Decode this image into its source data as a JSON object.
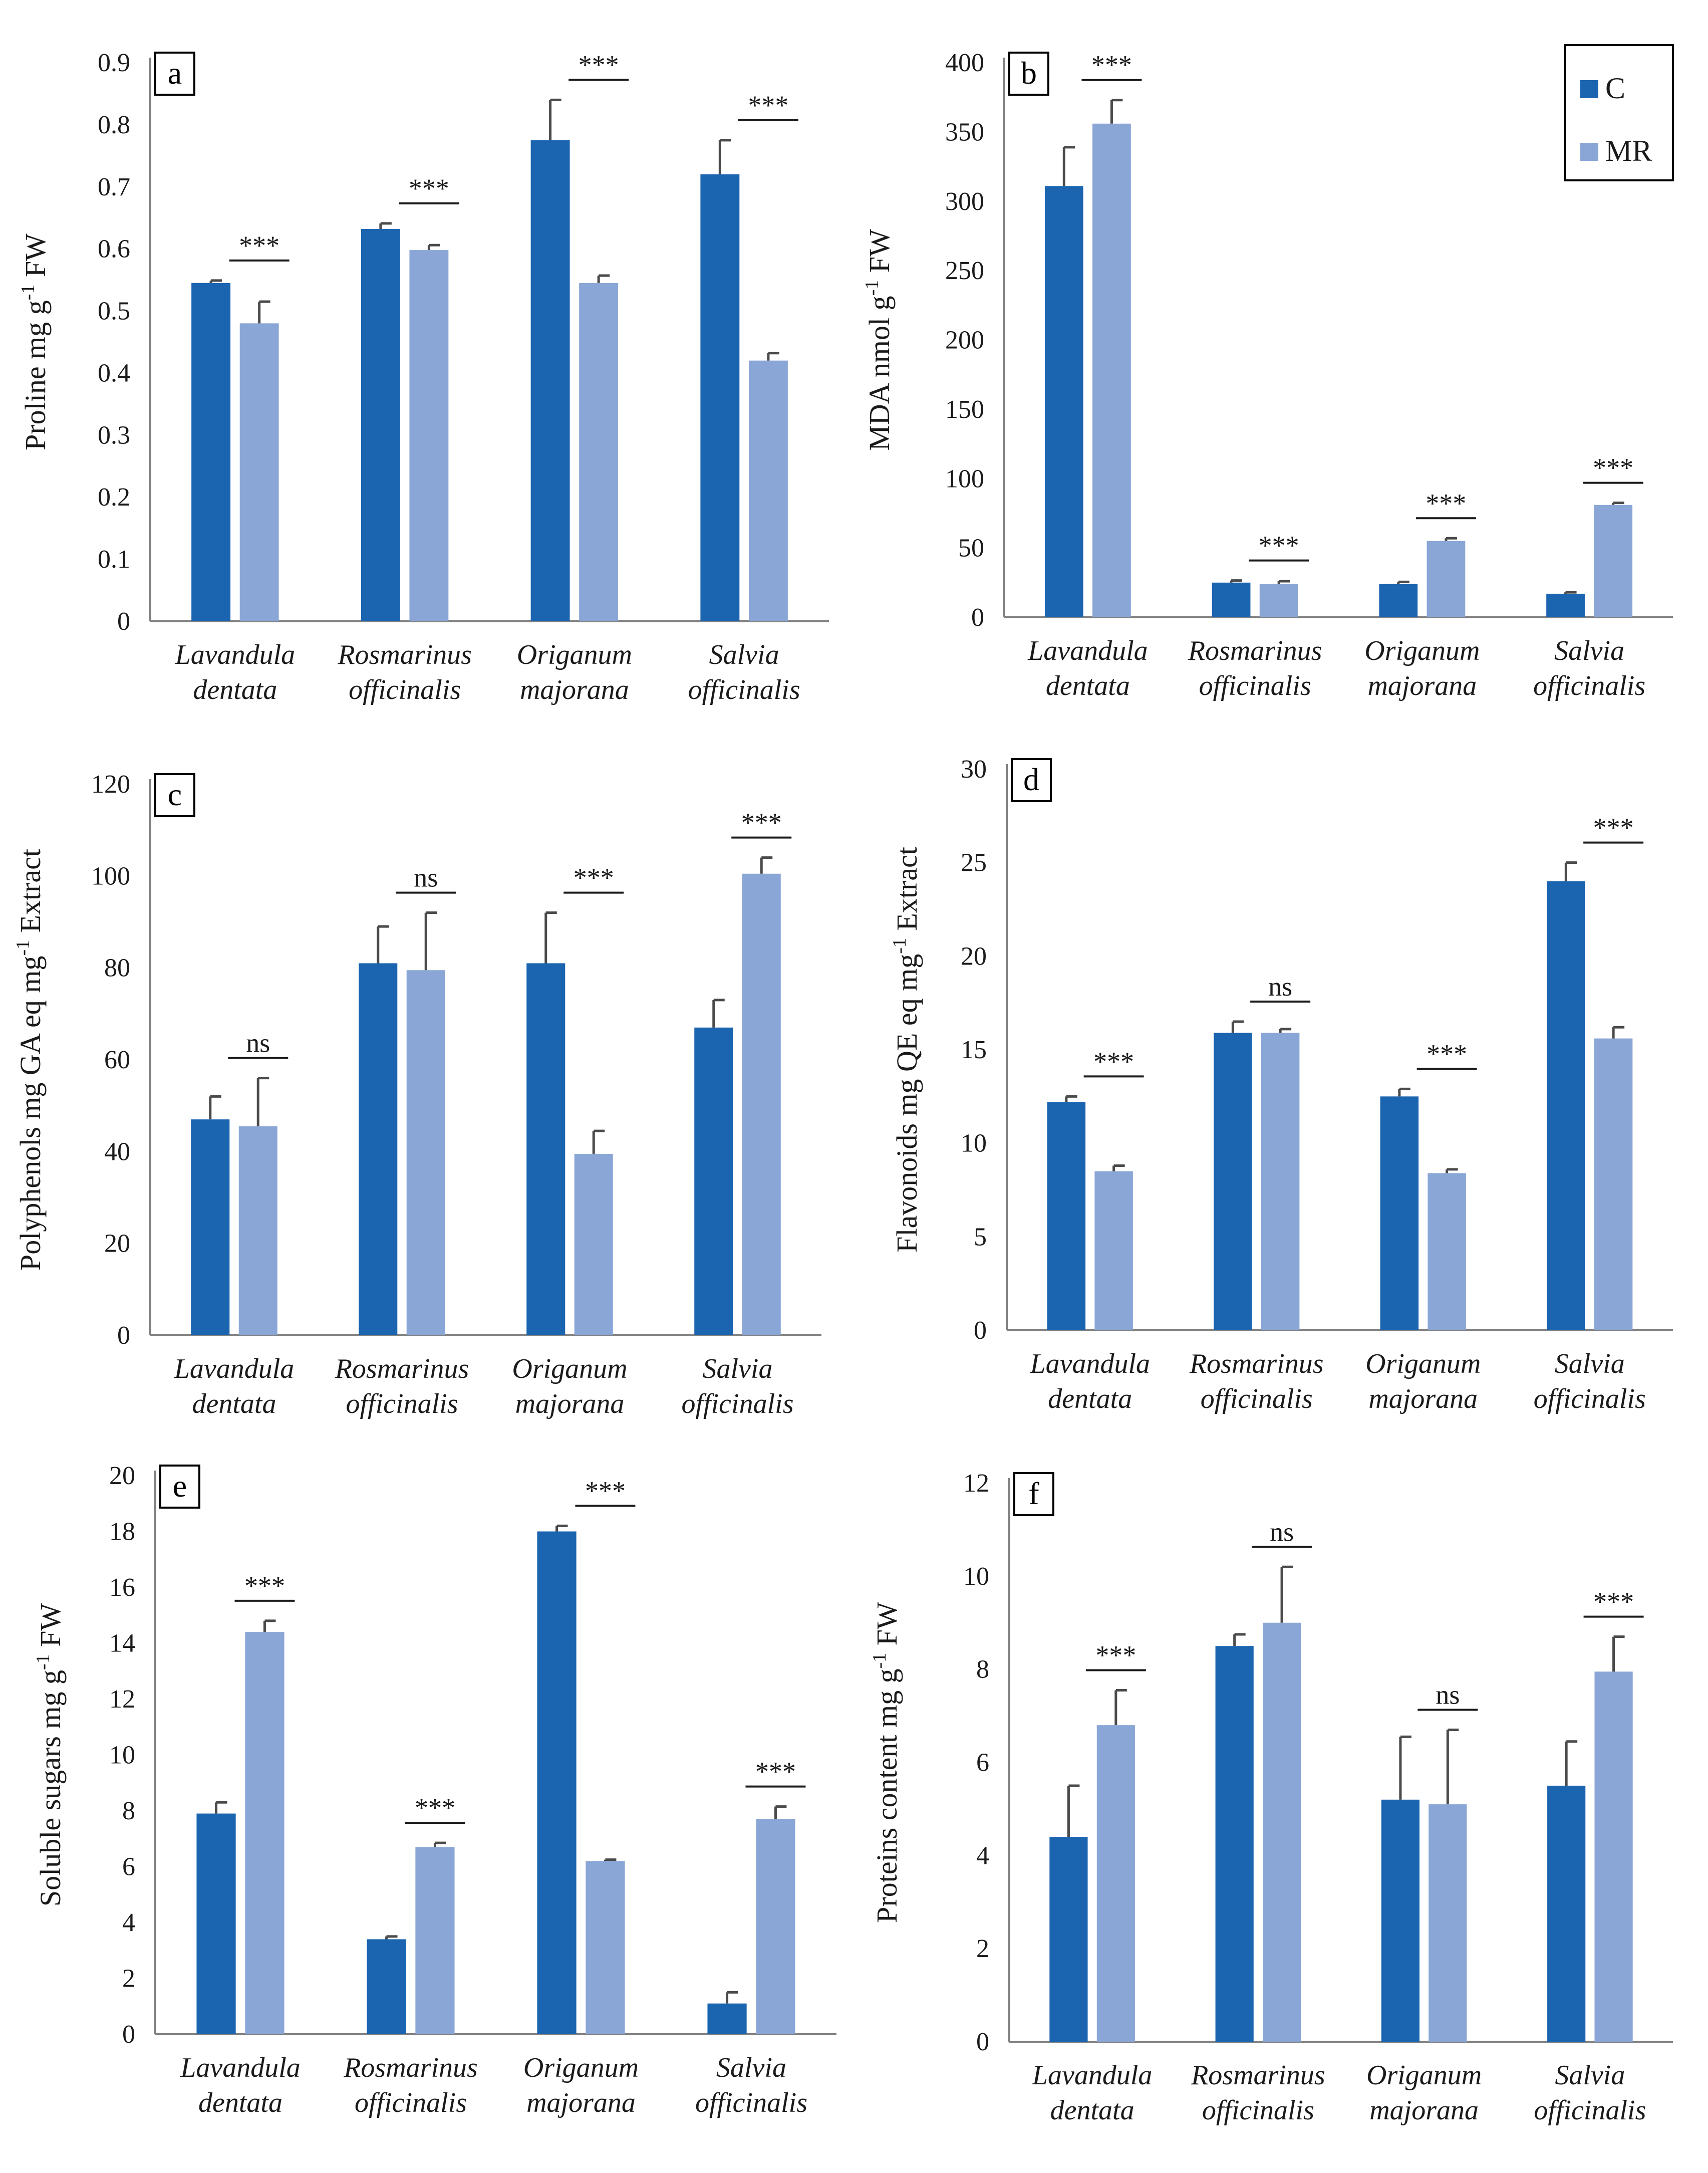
{
  "chart_data": [
    {
      "panel": "a",
      "type": "bar",
      "categories": [
        [
          "Lavandula",
          "dentata"
        ],
        [
          "Rosmarinus",
          "officinalis"
        ],
        [
          "Origanum",
          "majorana"
        ],
        [
          "Salvia",
          "officinalis"
        ]
      ],
      "ylabel": "Proline mg g",
      "ylabel_sup": "-1",
      "ylabel_tail": " FW",
      "ylim": [
        0,
        0.9
      ],
      "yticks": [
        "0",
        "0.1",
        "0.2",
        "0.3",
        "0.4",
        "0.5",
        "0.6",
        "0.7",
        "0.8",
        "0.9"
      ],
      "series": [
        {
          "name": "C",
          "values": [
            0.545,
            0.632,
            0.775,
            0.72
          ],
          "errors": [
            0.004,
            0.009,
            0.065,
            0.055
          ]
        },
        {
          "name": "MR",
          "values": [
            0.48,
            0.598,
            0.545,
            0.42
          ],
          "errors": [
            0.035,
            0.008,
            0.012,
            0.012
          ]
        }
      ],
      "significance": [
        "***",
        "***",
        "***",
        "***"
      ]
    },
    {
      "panel": "b",
      "type": "bar",
      "categories": [
        [
          "Lavandula",
          "dentata"
        ],
        [
          "Rosmarinus",
          "officinalis"
        ],
        [
          "Origanum",
          "majorana"
        ],
        [
          "Salvia",
          "officinalis"
        ]
      ],
      "ylabel": "MDA nmol g",
      "ylabel_sup": "-1",
      "ylabel_tail": " FW",
      "ylim": [
        0,
        400
      ],
      "yticks": [
        "0",
        "50",
        "100",
        "150",
        "200",
        "250",
        "300",
        "350",
        "400"
      ],
      "series": [
        {
          "name": "C",
          "values": [
            311,
            25,
            24,
            17
          ],
          "errors": [
            28,
            1.5,
            1.5,
            1
          ]
        },
        {
          "name": "MR",
          "values": [
            356,
            24,
            55,
            81
          ],
          "errors": [
            17,
            2,
            2,
            1.5
          ]
        }
      ],
      "significance": [
        "***",
        "***",
        "***",
        "***"
      ]
    },
    {
      "panel": "c",
      "type": "bar",
      "categories": [
        [
          "Lavandula",
          "dentata"
        ],
        [
          "Rosmarinus",
          "officinalis"
        ],
        [
          "Origanum",
          "majorana"
        ],
        [
          "Salvia",
          "officinalis"
        ]
      ],
      "ylabel": "Polyphenols mg GA eq mg",
      "ylabel_sup": "-1",
      "ylabel_tail": " Extract",
      "ylim": [
        0,
        120
      ],
      "yticks": [
        "0",
        "20",
        "40",
        "60",
        "80",
        "100",
        "120"
      ],
      "series": [
        {
          "name": "C",
          "values": [
            47,
            81,
            81,
            67
          ],
          "errors": [
            5,
            8,
            11,
            6
          ]
        },
        {
          "name": "MR",
          "values": [
            45.5,
            79.5,
            39.5,
            100.5
          ],
          "errors": [
            10.5,
            12.5,
            5,
            3.5
          ]
        }
      ],
      "significance": [
        "ns",
        "ns",
        "***",
        "***"
      ]
    },
    {
      "panel": "d",
      "type": "bar",
      "categories": [
        [
          "Lavandula",
          "dentata"
        ],
        [
          "Rosmarinus",
          "officinalis"
        ],
        [
          "Origanum",
          "majorana"
        ],
        [
          "Salvia",
          "officinalis"
        ]
      ],
      "ylabel": "Flavonoids mg QE eq mg",
      "ylabel_sup": "-1",
      "ylabel_tail": " Extract",
      "ylim": [
        0,
        30
      ],
      "yticks": [
        "0",
        "5",
        "10",
        "15",
        "20",
        "25",
        "30"
      ],
      "series": [
        {
          "name": "C",
          "values": [
            12.2,
            15.9,
            12.5,
            24
          ],
          "errors": [
            0.3,
            0.6,
            0.4,
            1
          ]
        },
        {
          "name": "MR",
          "values": [
            8.5,
            15.9,
            8.4,
            15.6
          ],
          "errors": [
            0.3,
            0.2,
            0.2,
            0.6
          ]
        }
      ],
      "significance": [
        "***",
        "ns",
        "***",
        "***"
      ]
    },
    {
      "panel": "e",
      "type": "bar",
      "categories": [
        [
          "Lavandula",
          "dentata"
        ],
        [
          "Rosmarinus",
          "officinalis"
        ],
        [
          "Origanum",
          "majorana"
        ],
        [
          "Salvia",
          "officinalis"
        ]
      ],
      "ylabel": "Soluble sugars mg g",
      "ylabel_sup": "-1",
      "ylabel_tail": " FW",
      "ylim": [
        0,
        20
      ],
      "yticks": [
        "0",
        "2",
        "4",
        "6",
        "8",
        "10",
        "12",
        "14",
        "16",
        "18",
        "20"
      ],
      "series": [
        {
          "name": "C",
          "values": [
            7.9,
            3.4,
            18,
            1.1
          ],
          "errors": [
            0.4,
            0.1,
            0.2,
            0.4
          ]
        },
        {
          "name": "MR",
          "values": [
            14.4,
            6.7,
            6.2,
            7.7
          ],
          "errors": [
            0.4,
            0.15,
            0.05,
            0.45
          ]
        }
      ],
      "significance": [
        "***",
        "***",
        "***",
        "***"
      ]
    },
    {
      "panel": "f",
      "type": "bar",
      "categories": [
        [
          "Lavandula",
          "dentata"
        ],
        [
          "Rosmarinus",
          "officinalis"
        ],
        [
          "Origanum",
          "majorana"
        ],
        [
          "Salvia",
          "officinalis"
        ]
      ],
      "ylabel": "Proteins content mg g",
      "ylabel_sup": "-1",
      "ylabel_tail": " FW",
      "ylim": [
        0,
        12
      ],
      "yticks": [
        "0",
        "2",
        "4",
        "6",
        "8",
        "10",
        "12"
      ],
      "series": [
        {
          "name": "C",
          "values": [
            4.4,
            8.5,
            5.2,
            5.5
          ],
          "errors": [
            1.1,
            0.25,
            1.35,
            0.95
          ]
        },
        {
          "name": "MR",
          "values": [
            6.8,
            9,
            5.1,
            7.95
          ],
          "errors": [
            0.75,
            1.2,
            1.6,
            0.75
          ]
        }
      ],
      "significance": [
        "***",
        "ns",
        "ns",
        "***"
      ]
    }
  ],
  "legend": {
    "items": [
      {
        "label": "C",
        "color": "#1a64b0"
      },
      {
        "label": "MR",
        "color": "#8aa6d6"
      }
    ]
  },
  "colors": {
    "C": "#1a64b0",
    "MR": "#8aa6d6",
    "axis": "#7f7f7f",
    "error": "#4a4a4a"
  }
}
